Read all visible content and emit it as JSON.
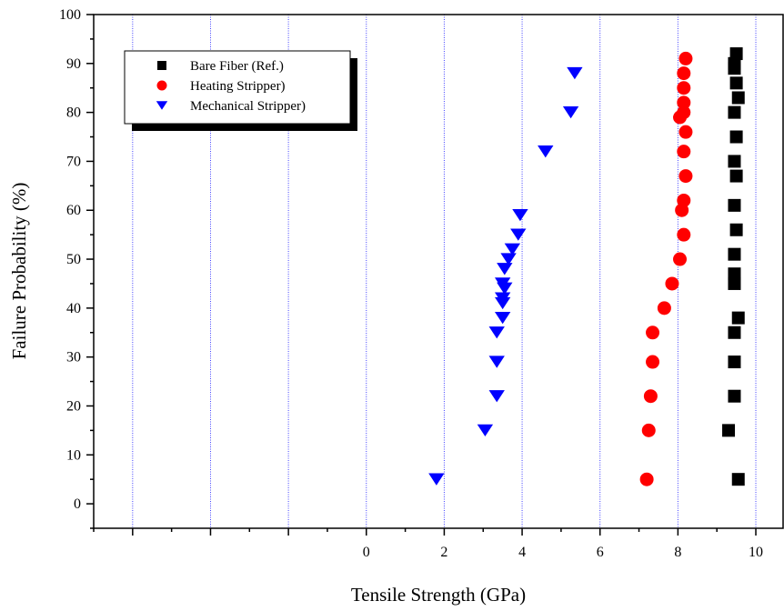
{
  "chart_data": {
    "type": "scatter",
    "title": "",
    "xlabel": "Tensile Strength (GPa)",
    "ylabel": "Failure Probability (%)",
    "xlim": [
      -7,
      10.7
    ],
    "ylim": [
      -5,
      100
    ],
    "x_ticks": [
      0,
      2,
      4,
      6,
      8,
      10
    ],
    "y_ticks": [
      0,
      10,
      20,
      30,
      40,
      50,
      60,
      70,
      80,
      90,
      100
    ],
    "grid": "vertical dotted blue lines",
    "legend_position": "top-left",
    "series": [
      {
        "name": "Bare Fiber (Ref.)",
        "marker": "square",
        "color": "#000000",
        "points": [
          [
            9.55,
            5
          ],
          [
            9.3,
            15
          ],
          [
            9.45,
            22
          ],
          [
            9.45,
            29
          ],
          [
            9.45,
            35
          ],
          [
            9.55,
            38
          ],
          [
            9.45,
            45
          ],
          [
            9.45,
            47
          ],
          [
            9.45,
            51
          ],
          [
            9.5,
            56
          ],
          [
            9.45,
            61
          ],
          [
            9.5,
            67
          ],
          [
            9.45,
            70
          ],
          [
            9.5,
            75
          ],
          [
            9.45,
            80
          ],
          [
            9.55,
            83
          ],
          [
            9.5,
            86
          ],
          [
            9.45,
            89
          ],
          [
            9.45,
            90
          ],
          [
            9.5,
            92
          ]
        ]
      },
      {
        "name": "Heating Stripper)",
        "marker": "circle",
        "color": "#ff0000",
        "points": [
          [
            7.2,
            5
          ],
          [
            7.25,
            15
          ],
          [
            7.3,
            22
          ],
          [
            7.35,
            29
          ],
          [
            7.35,
            35
          ],
          [
            7.65,
            40
          ],
          [
            7.85,
            45
          ],
          [
            8.05,
            50
          ],
          [
            8.15,
            55
          ],
          [
            8.1,
            60
          ],
          [
            8.15,
            62
          ],
          [
            8.2,
            67
          ],
          [
            8.15,
            72
          ],
          [
            8.2,
            76
          ],
          [
            8.05,
            79
          ],
          [
            8.15,
            80
          ],
          [
            8.15,
            82
          ],
          [
            8.15,
            85
          ],
          [
            8.15,
            88
          ],
          [
            8.2,
            91
          ]
        ]
      },
      {
        "name": "Mechanical Stripper)",
        "marker": "triangle-down",
        "color": "#0000ff",
        "points": [
          [
            1.8,
            5
          ],
          [
            3.05,
            15
          ],
          [
            3.35,
            22
          ],
          [
            3.35,
            29
          ],
          [
            3.35,
            35
          ],
          [
            3.5,
            38
          ],
          [
            3.5,
            41
          ],
          [
            3.5,
            42
          ],
          [
            3.55,
            44
          ],
          [
            3.5,
            45
          ],
          [
            3.55,
            48
          ],
          [
            3.65,
            50
          ],
          [
            3.75,
            52
          ],
          [
            3.9,
            55
          ],
          [
            3.95,
            59
          ],
          [
            4.6,
            72
          ],
          [
            5.25,
            80
          ],
          [
            5.35,
            88
          ]
        ]
      }
    ]
  }
}
